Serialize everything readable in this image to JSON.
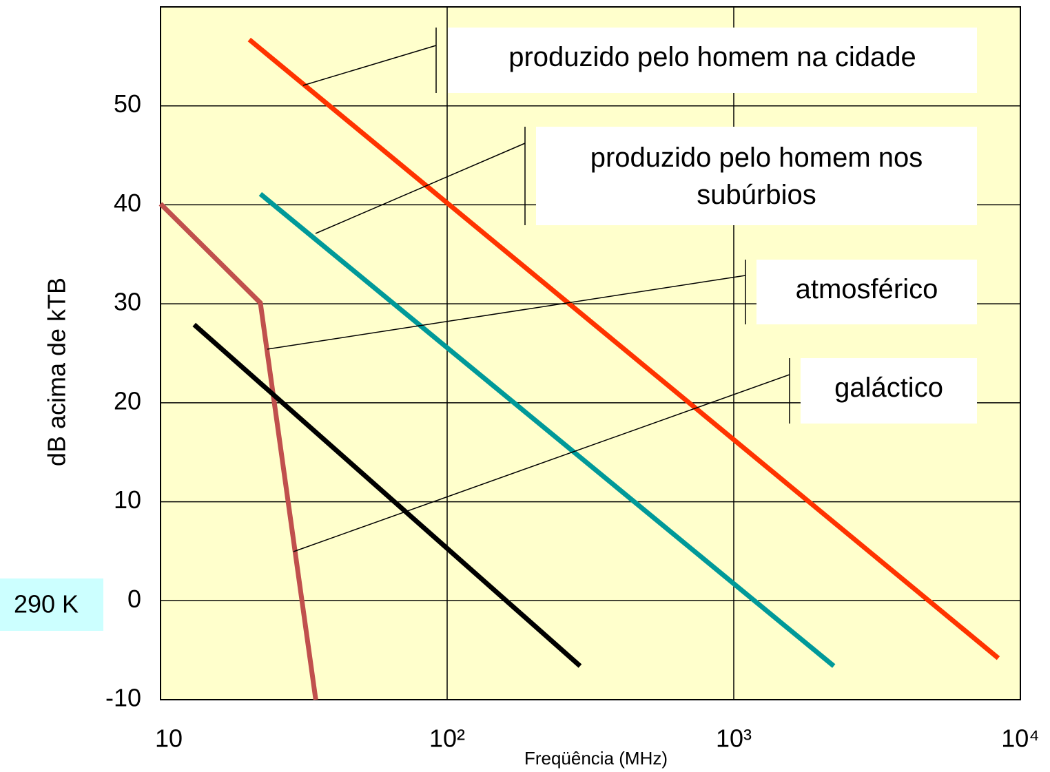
{
  "chart_data": {
    "type": "line",
    "x_label": "Freqüência (MHz)",
    "y_label": "dB acima de kTB",
    "annotation": "290 K",
    "log_x": true,
    "grid": true,
    "xlim": [
      10,
      10000
    ],
    "xticks": [
      10,
      {
        "value": 100,
        "label": "10²"
      },
      {
        "value": 1000,
        "label": "10³"
      },
      {
        "value": 10000,
        "label": "10⁴"
      }
    ],
    "ylim": [
      -10,
      60
    ],
    "yticks": [
      -10,
      0,
      10,
      20,
      30,
      40,
      50
    ],
    "series": [
      {
        "name": "produzido pelo homem na cidade",
        "color": "#ff3300",
        "x": [
          20.4,
          8375
        ],
        "values": [
          56.7,
          -5.8
        ]
      },
      {
        "name": "produzido pelo homem nos subúrbios",
        "color": "#009999",
        "x": [
          22.3,
          2234
        ],
        "values": [
          41.1,
          -6.6
        ]
      },
      {
        "name": "atmosférico",
        "color": "#c0504d",
        "x": [
          10,
          22.3,
          34.8
        ],
        "values": [
          40.1,
          30.1,
          -10
        ]
      },
      {
        "name": "galáctico",
        "color": "#000000",
        "x": [
          13.1,
          291
        ],
        "values": [
          27.9,
          -6.6
        ]
      }
    ]
  }
}
